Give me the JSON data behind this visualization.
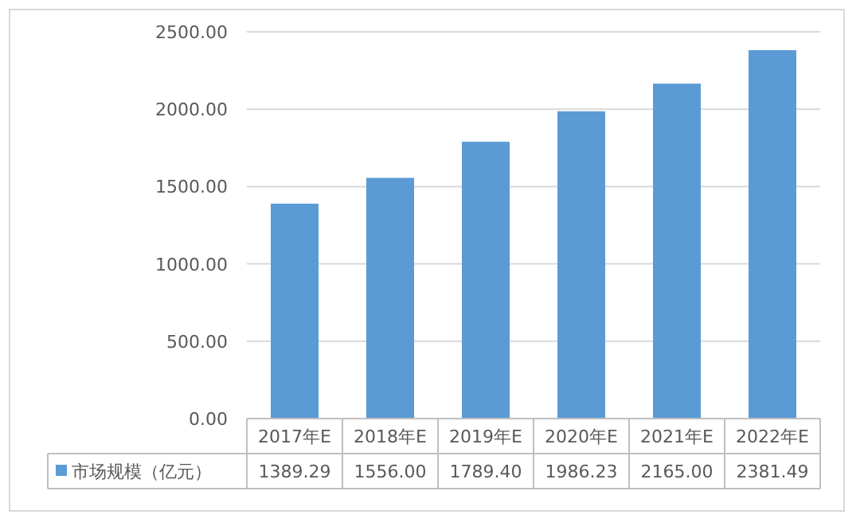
{
  "chart_data": {
    "type": "bar",
    "categories": [
      "2017年E",
      "2018年E",
      "2019年E",
      "2020年E",
      "2021年E",
      "2022年E"
    ],
    "series": [
      {
        "name": "市场规模（亿元）",
        "color": "#5b9bd5",
        "values": [
          1389.29,
          1556.0,
          1789.4,
          1986.23,
          2165.0,
          2381.49
        ],
        "value_labels": [
          "1389.29",
          "1556.00",
          "1789.40",
          "1986.23",
          "2165.00",
          "2381.49"
        ]
      }
    ],
    "ylim": [
      0,
      2500
    ],
    "yticks": [
      {
        "value": 0,
        "label": "0.00"
      },
      {
        "value": 500,
        "label": "500.00"
      },
      {
        "value": 1000,
        "label": "1000.00"
      },
      {
        "value": 1500,
        "label": "1500.00"
      },
      {
        "value": 2000,
        "label": "2000.00"
      },
      {
        "value": 2500,
        "label": "2500.00"
      }
    ],
    "grid": "y",
    "legend": "bottom"
  }
}
